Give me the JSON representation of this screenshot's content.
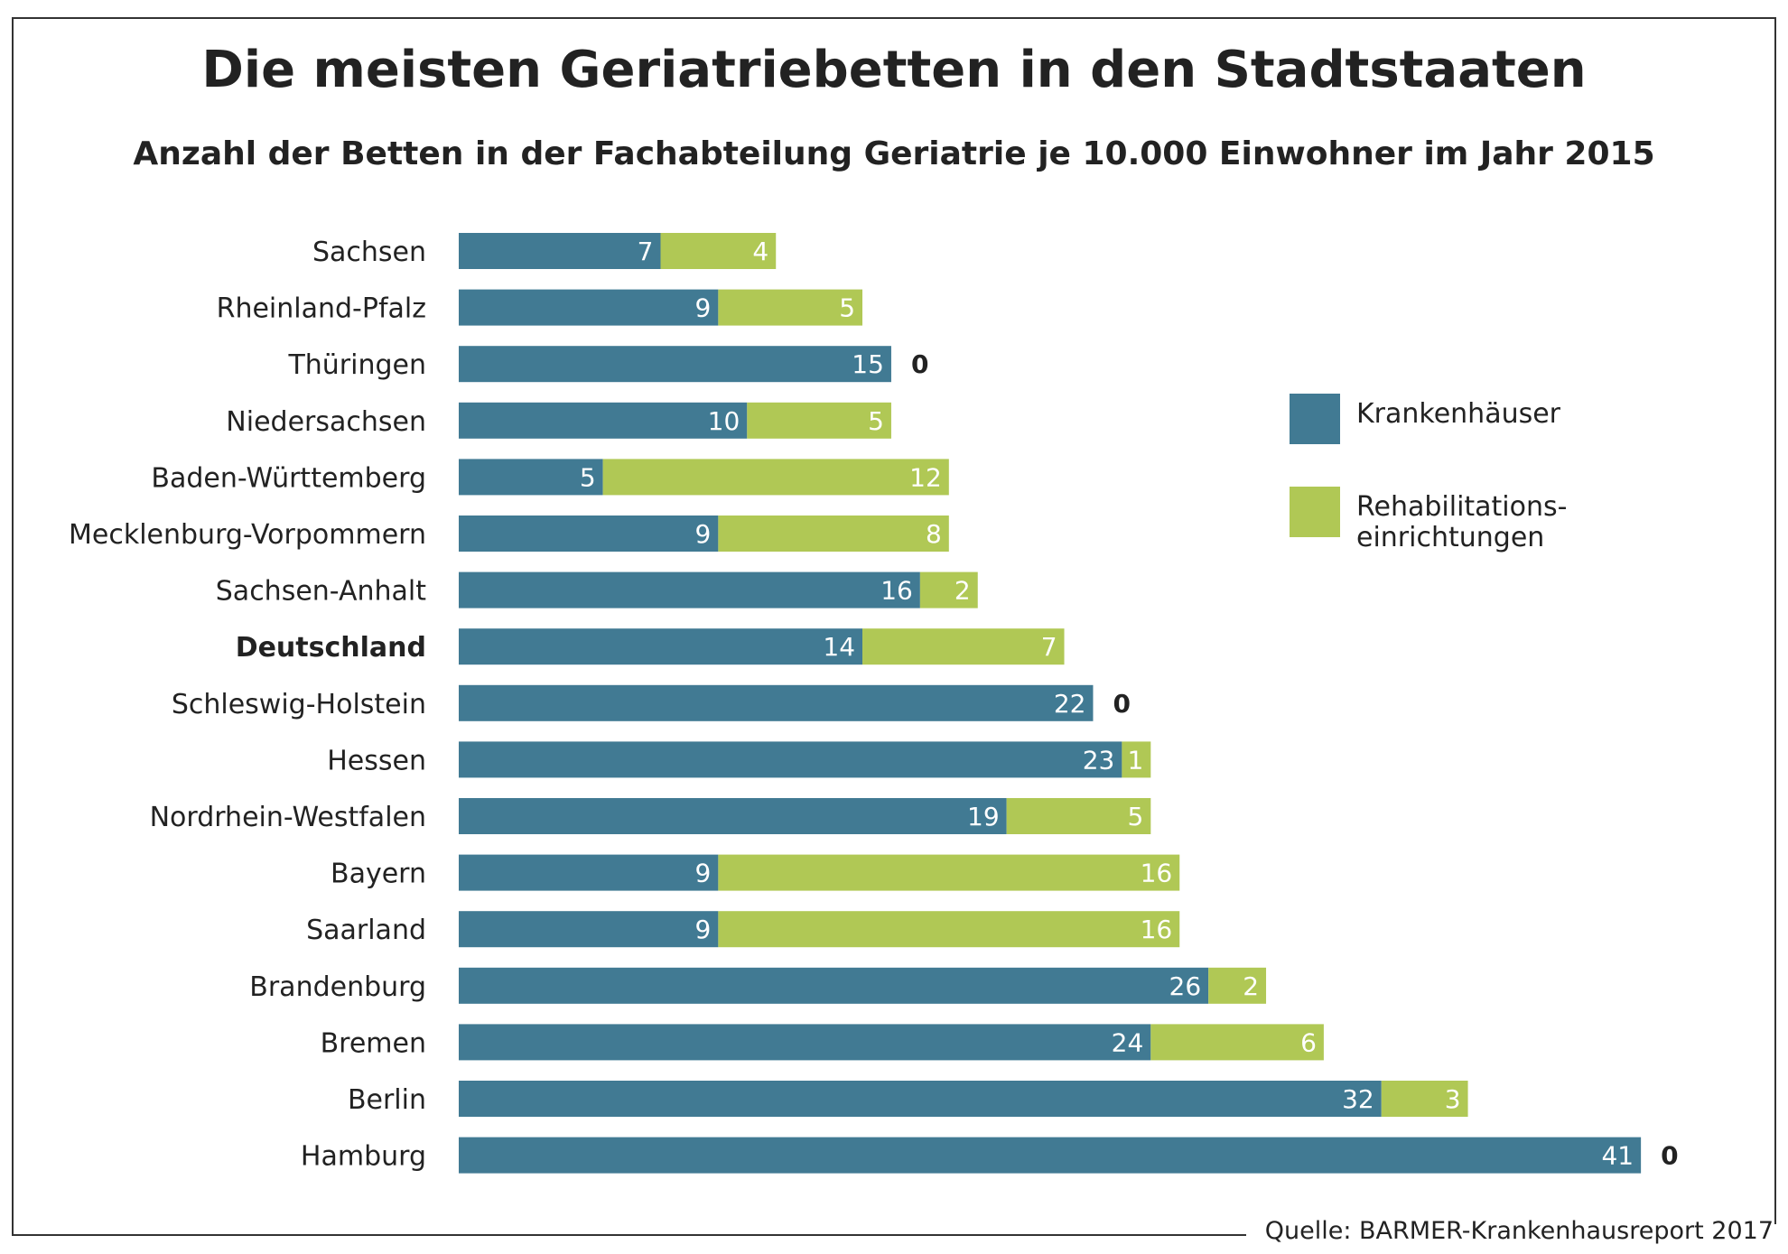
{
  "title": "Die meisten Geriatriebetten in den Stadtstaaten",
  "subtitle": "Anzahl der Betten in der Fachabteilung Geriatrie je 10.000 Einwohner im Jahr 2015",
  "source": "Quelle: BARMER-Krankenhausreport 2017",
  "legend": [
    {
      "label": "Krankenhäuser",
      "color": "#417a93"
    },
    {
      "label": "Rehabilitations-\neinrichtungen",
      "color": "#b0c855"
    }
  ],
  "chart_data": {
    "type": "bar",
    "orientation": "horizontal",
    "stacked": true,
    "title": "Die meisten Geriatriebetten in den Stadtstaaten",
    "subtitle": "Anzahl der Betten in der Fachabteilung Geriatrie je 10.000 Einwohner im Jahr 2015",
    "categories": [
      "Sachsen",
      "Rheinland-Pfalz",
      "Thüringen",
      "Niedersachsen",
      "Baden-Württemberg",
      "Mecklenburg-Vorpommern",
      "Sachsen-Anhalt",
      "Deutschland",
      "Schleswig-Holstein",
      "Hessen",
      "Nordrhein-Westfalen",
      "Bayern",
      "Saarland",
      "Brandenburg",
      "Bremen",
      "Berlin",
      "Hamburg"
    ],
    "highlight": "Deutschland",
    "series": [
      {
        "name": "Krankenhäuser",
        "color": "#417a93",
        "values": [
          7,
          9,
          15,
          10,
          5,
          9,
          16,
          14,
          22,
          23,
          19,
          9,
          9,
          26,
          24,
          32,
          41
        ]
      },
      {
        "name": "Rehabilitationseinrichtungen",
        "color": "#b0c855",
        "values": [
          4,
          5,
          0,
          5,
          12,
          8,
          2,
          7,
          0,
          1,
          5,
          16,
          16,
          2,
          6,
          3,
          0
        ]
      }
    ],
    "xlim": [
      0,
      41
    ],
    "grid": false,
    "legend_position": "right"
  }
}
